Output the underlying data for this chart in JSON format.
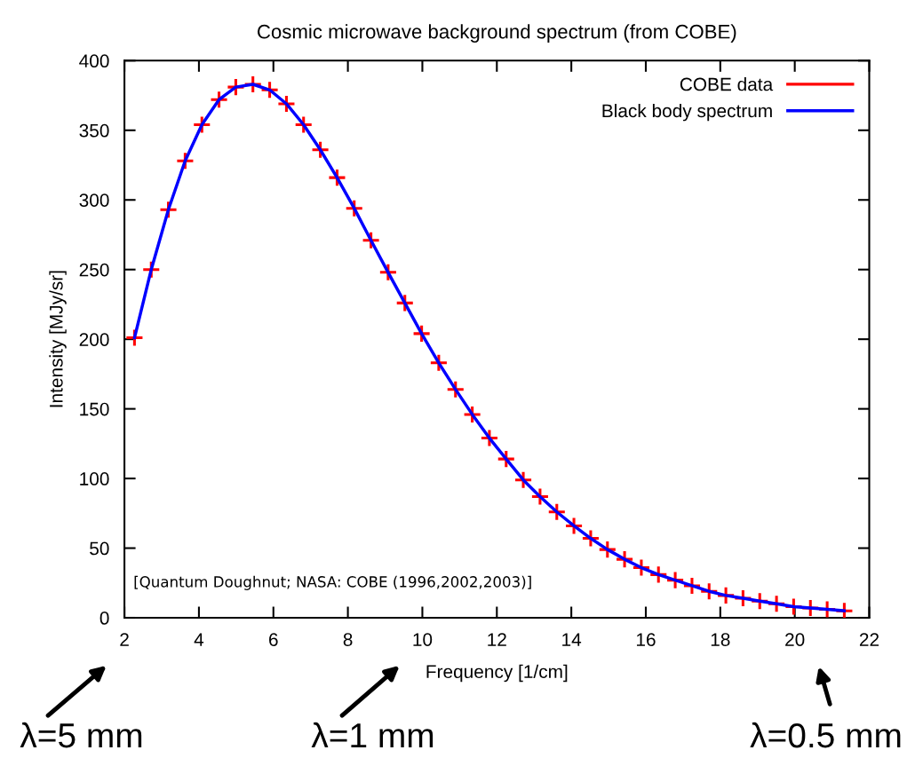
{
  "chart_data": {
    "type": "scatter",
    "title": "Cosmic microwave background spectrum (from COBE)",
    "xlabel": "Frequency [1/cm]",
    "ylabel": "Intensity [MJy/sr]",
    "xlim": [
      2,
      22
    ],
    "xticks": [
      2,
      4,
      6,
      8,
      10,
      12,
      14,
      16,
      18,
      20,
      22
    ],
    "ylim": [
      0,
      400
    ],
    "yticks": [
      0,
      50,
      100,
      150,
      200,
      250,
      300,
      350,
      400
    ],
    "grid": false,
    "legend": "top right",
    "marker": "cross",
    "series": [
      {
        "name": "COBE data",
        "color": "#ff0000",
        "x": [
          2.27,
          2.72,
          3.18,
          3.63,
          4.08,
          4.54,
          4.99,
          5.45,
          5.9,
          6.35,
          6.81,
          7.26,
          7.71,
          8.17,
          8.62,
          9.08,
          9.53,
          9.98,
          10.44,
          10.89,
          11.34,
          11.8,
          12.25,
          12.71,
          13.16,
          13.61,
          14.07,
          14.52,
          14.97,
          15.43,
          15.88,
          16.34,
          16.79,
          17.24,
          17.7,
          18.15,
          18.61,
          19.06,
          19.51,
          19.97,
          20.42,
          20.87,
          21.33
        ],
        "values": [
          201,
          250,
          293,
          328,
          354,
          372,
          381,
          383,
          379,
          369,
          354,
          336,
          316,
          294,
          271,
          248,
          226,
          204,
          183,
          164,
          146,
          129,
          114,
          99,
          87,
          76,
          66,
          57,
          49,
          42,
          36,
          31,
          27,
          23,
          19,
          16,
          14,
          12,
          10,
          8,
          7,
          6,
          5
        ]
      },
      {
        "name": "Black body spectrum",
        "type": "line",
        "color": "#0000ff",
        "marker": "none",
        "line_style": "solid",
        "x": [
          2.27,
          2.72,
          3.18,
          3.63,
          4.08,
          4.54,
          4.99,
          5.45,
          5.9,
          6.35,
          6.81,
          7.26,
          7.71,
          8.17,
          8.62,
          9.08,
          9.53,
          9.98,
          10.44,
          10.89,
          11.34,
          11.8,
          12.25,
          12.71,
          13.16,
          13.61,
          14.07,
          14.52,
          14.97,
          15.43,
          15.88,
          16.34,
          16.79,
          17.24,
          17.7,
          18.15,
          18.61,
          19.06,
          19.51,
          19.97,
          20.42,
          20.87,
          21.33
        ],
        "values": [
          201,
          250,
          293,
          328,
          354,
          372,
          381,
          383,
          379,
          369,
          354,
          336,
          316,
          294,
          271,
          248,
          226,
          204,
          183,
          164,
          146,
          129,
          114,
          99,
          87,
          76,
          66,
          57,
          49,
          42,
          36,
          31,
          27,
          23,
          19,
          16,
          14,
          12,
          10,
          8,
          7,
          6,
          5
        ]
      }
    ],
    "annotations": [
      "[Quantum Doughnut; NASA: COBE (1996,2002,2003)]",
      "λ=5 mm",
      "λ=1 mm",
      "λ=0.5 mm"
    ]
  }
}
